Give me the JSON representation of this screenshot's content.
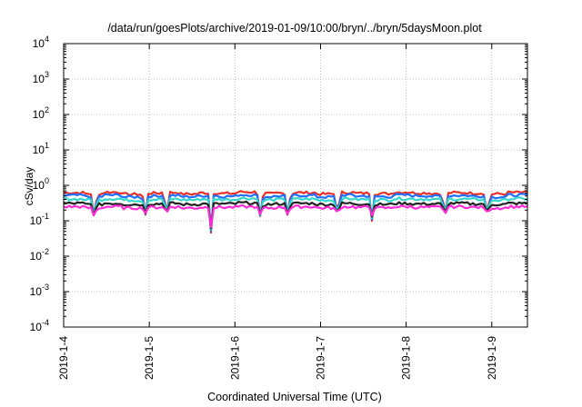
{
  "chart_data": {
    "type": "line",
    "title": "/data/run/goesPlots/archive/2019-01-09/10:00/bryn/../bryn/5daysMoon.plot",
    "xlabel": "Coordinated Universal Time (UTC)",
    "ylabel": "cSv/day",
    "y_scale": "log",
    "ylim": [
      0.0001,
      10000
    ],
    "y_ticks": [
      {
        "value": 0.0001,
        "base": "10",
        "exp": "-4"
      },
      {
        "value": 0.001,
        "base": "10",
        "exp": "-3"
      },
      {
        "value": 0.01,
        "base": "10",
        "exp": "-2"
      },
      {
        "value": 0.1,
        "base": "10",
        "exp": "-1"
      },
      {
        "value": 1,
        "base": "10",
        "exp": "0"
      },
      {
        "value": 10,
        "base": "10",
        "exp": "1"
      },
      {
        "value": 100,
        "base": "10",
        "exp": "2"
      },
      {
        "value": 1000,
        "base": "10",
        "exp": "3"
      },
      {
        "value": 10000,
        "base": "10",
        "exp": "4"
      }
    ],
    "xlim": [
      "2019-01-04T00:00",
      "2019-01-09T10:00"
    ],
    "x_ticks": [
      "2019-1-4",
      "2019-1-5",
      "2019-1-6",
      "2019-1-7",
      "2019-1-8",
      "2019-1-9"
    ],
    "grid": true,
    "series": [
      {
        "color": "#e8302a",
        "base": 0.6,
        "values": [
          0.62,
          0.58,
          0.64,
          0.56,
          0.6,
          0.63,
          0.57,
          0.61,
          0.59,
          0.65,
          0.58,
          0.6,
          0.62,
          0.57,
          0.63,
          0.6,
          0.58,
          0.64,
          0.61,
          0.59,
          0.62,
          0.6,
          0.57,
          0.63
        ]
      },
      {
        "color": "#1f6fff",
        "base": 0.5,
        "values": [
          0.52,
          0.48,
          0.53,
          0.47,
          0.5,
          0.52,
          0.48,
          0.51,
          0.49,
          0.54,
          0.48,
          0.5,
          0.52,
          0.47,
          0.53,
          0.5,
          0.48,
          0.53,
          0.51,
          0.49,
          0.52,
          0.5,
          0.47,
          0.53
        ]
      },
      {
        "color": "#35d8c8",
        "base": 0.4,
        "values": [
          0.41,
          0.39,
          0.42,
          0.38,
          0.4,
          0.41,
          0.39,
          0.41,
          0.4,
          0.43,
          0.39,
          0.4,
          0.41,
          0.38,
          0.42,
          0.4,
          0.39,
          0.42,
          0.41,
          0.4,
          0.41,
          0.4,
          0.38,
          0.42
        ]
      },
      {
        "color": "#222222",
        "base": 0.3,
        "values": [
          0.31,
          0.29,
          0.31,
          0.29,
          0.3,
          0.31,
          0.29,
          0.3,
          0.3,
          0.32,
          0.29,
          0.3,
          0.31,
          0.29,
          0.31,
          0.3,
          0.29,
          0.31,
          0.3,
          0.3,
          0.31,
          0.3,
          0.29,
          0.31
        ]
      },
      {
        "color": "#ff2bd6",
        "base": 0.24,
        "values": [
          0.25,
          0.23,
          0.25,
          0.23,
          0.24,
          0.25,
          0.23,
          0.24,
          0.24,
          0.25,
          0.23,
          0.24,
          0.25,
          0.23,
          0.25,
          0.24,
          0.23,
          0.25,
          0.24,
          0.24,
          0.25,
          0.24,
          0.23,
          0.25
        ]
      }
    ],
    "dips": [
      {
        "t": 0.36,
        "value": 0.1
      },
      {
        "t": 0.95,
        "value": 0.13
      },
      {
        "t": 1.2,
        "value": 0.13
      },
      {
        "t": 1.72,
        "value": 0.055
      },
      {
        "t": 2.3,
        "value": 0.12
      },
      {
        "t": 2.62,
        "value": 0.12
      },
      {
        "t": 3.2,
        "value": 0.12
      },
      {
        "t": 3.6,
        "value": 0.12
      },
      {
        "t": 4.45,
        "value": 0.12
      },
      {
        "t": 4.95,
        "value": 0.13
      }
    ]
  }
}
